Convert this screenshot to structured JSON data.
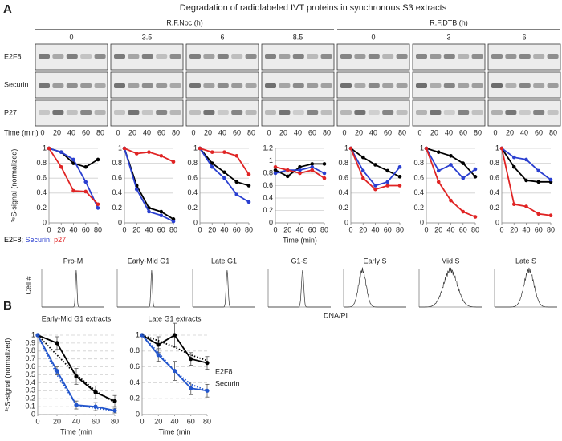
{
  "panel_a": {
    "label": "A",
    "title": "Degradation of radiolabeled IVT proteins in synchronous S3 extracts",
    "groups": [
      {
        "name": "R.F.Noc (h)",
        "timepoints": [
          "0",
          "3.5",
          "6",
          "8.5"
        ]
      },
      {
        "name": "R.F.DTB (h)",
        "timepoints": [
          "0",
          "3",
          "6"
        ]
      }
    ],
    "blot_rows": [
      "E2F8",
      "Securin",
      "P27"
    ],
    "time_title": "Time (min)",
    "time_labels": [
      "0",
      "20",
      "40",
      "60",
      "80"
    ],
    "legend_separator": ";",
    "flow": {
      "labels": [
        "Pro-M",
        "Early-Mid G1",
        "Late G1",
        "G1-S",
        "Early S",
        "Mid S",
        "Late S"
      ],
      "ylabel": "Cell #",
      "xlabel": "DNA/PI"
    }
  },
  "panel_b": {
    "label": "B"
  },
  "chart_data": [
    {
      "type": "line",
      "ylabel": "³⁵S-signal (normalized)",
      "x": [
        0,
        20,
        40,
        60,
        80
      ],
      "xlim": [
        0,
        80
      ],
      "xticks": [
        0,
        20,
        40,
        60,
        80
      ],
      "ylim": [
        0,
        1
      ],
      "yticks": [
        0,
        0.2,
        0.4,
        0.6,
        0.8,
        1
      ],
      "grid": true,
      "series": [
        {
          "name": "E2F8",
          "color": "#000000",
          "values": [
            1,
            0.95,
            0.8,
            0.75,
            0.85
          ]
        },
        {
          "name": "Securin",
          "color": "#2a3fd0",
          "values": [
            1,
            0.95,
            0.85,
            0.55,
            0.2
          ]
        },
        {
          "name": "p27",
          "color": "#e02424",
          "values": [
            1,
            0.75,
            0.43,
            0.42,
            0.25
          ]
        }
      ]
    },
    {
      "type": "line",
      "x": [
        0,
        20,
        40,
        60,
        80
      ],
      "xlim": [
        0,
        80
      ],
      "xticks": [
        0,
        20,
        40,
        60,
        80
      ],
      "ylim": [
        0,
        1
      ],
      "yticks": [
        0,
        0.2,
        0.4,
        0.6,
        0.8,
        1
      ],
      "grid": true,
      "series": [
        {
          "color": "#000000",
          "values": [
            1,
            0.5,
            0.2,
            0.15,
            0.05
          ]
        },
        {
          "color": "#2a3fd0",
          "values": [
            1,
            0.45,
            0.15,
            0.1,
            0.02
          ]
        },
        {
          "color": "#e02424",
          "values": [
            1,
            0.93,
            0.95,
            0.9,
            0.82
          ]
        }
      ]
    },
    {
      "type": "line",
      "x": [
        0,
        20,
        40,
        60,
        80
      ],
      "xlim": [
        0,
        80
      ],
      "xticks": [
        0,
        20,
        40,
        60,
        80
      ],
      "ylim": [
        0,
        1
      ],
      "yticks": [
        0,
        0.2,
        0.4,
        0.6,
        0.8,
        1
      ],
      "grid": true,
      "series": [
        {
          "color": "#000000",
          "values": [
            1,
            0.8,
            0.68,
            0.55,
            0.5
          ]
        },
        {
          "color": "#2a3fd0",
          "values": [
            1,
            0.75,
            0.6,
            0.38,
            0.28
          ]
        },
        {
          "color": "#e02424",
          "values": [
            1,
            0.95,
            0.95,
            0.9,
            0.65
          ]
        }
      ]
    },
    {
      "type": "line",
      "xlabel": "Time (min)",
      "x": [
        0,
        20,
        40,
        60,
        80
      ],
      "xlim": [
        0,
        80
      ],
      "xticks": [
        0,
        20,
        40,
        60,
        80
      ],
      "ylim": [
        0,
        1.2
      ],
      "yticks": [
        0,
        0.2,
        0.4,
        0.6,
        0.8,
        1,
        1.2
      ],
      "grid": true,
      "series": [
        {
          "color": "#000000",
          "values": [
            0.85,
            0.75,
            0.9,
            0.95,
            0.95
          ]
        },
        {
          "color": "#2a3fd0",
          "values": [
            0.8,
            0.85,
            0.85,
            0.9,
            0.8
          ]
        },
        {
          "color": "#e02424",
          "values": [
            0.9,
            0.85,
            0.8,
            0.85,
            0.72
          ]
        }
      ]
    },
    {
      "type": "line",
      "x": [
        0,
        20,
        40,
        60,
        80
      ],
      "xlim": [
        0,
        80
      ],
      "xticks": [
        0,
        20,
        40,
        60,
        80
      ],
      "ylim": [
        0,
        1
      ],
      "yticks": [
        0,
        0.2,
        0.4,
        0.6,
        0.8,
        1
      ],
      "grid": true,
      "series": [
        {
          "color": "#000000",
          "values": [
            1,
            0.88,
            0.78,
            0.7,
            0.62
          ]
        },
        {
          "color": "#2a3fd0",
          "values": [
            1,
            0.7,
            0.5,
            0.55,
            0.75
          ]
        },
        {
          "color": "#e02424",
          "values": [
            1,
            0.6,
            0.45,
            0.5,
            0.5
          ]
        }
      ]
    },
    {
      "type": "line",
      "x": [
        0,
        20,
        40,
        60,
        80
      ],
      "xlim": [
        0,
        80
      ],
      "xticks": [
        0,
        20,
        40,
        60,
        80
      ],
      "ylim": [
        0,
        1
      ],
      "yticks": [
        0,
        0.2,
        0.4,
        0.6,
        0.8,
        1
      ],
      "grid": true,
      "series": [
        {
          "color": "#000000",
          "values": [
            1,
            0.95,
            0.9,
            0.8,
            0.62
          ]
        },
        {
          "color": "#2a3fd0",
          "values": [
            1,
            0.7,
            0.78,
            0.6,
            0.72
          ]
        },
        {
          "color": "#e02424",
          "values": [
            1,
            0.55,
            0.3,
            0.15,
            0.08
          ]
        }
      ]
    },
    {
      "type": "line",
      "x": [
        0,
        20,
        40,
        60,
        80
      ],
      "xlim": [
        0,
        80
      ],
      "xticks": [
        0,
        20,
        40,
        60,
        80
      ],
      "ylim": [
        0,
        1
      ],
      "yticks": [
        0,
        0.2,
        0.4,
        0.6,
        0.8,
        1
      ],
      "grid": true,
      "series": [
        {
          "color": "#000000",
          "values": [
            1,
            0.75,
            0.57,
            0.55,
            0.55
          ]
        },
        {
          "color": "#2a3fd0",
          "values": [
            1,
            0.88,
            0.85,
            0.7,
            0.58
          ]
        },
        {
          "color": "#e02424",
          "values": [
            1,
            0.25,
            0.22,
            0.12,
            0.1
          ]
        }
      ]
    },
    {
      "type": "line",
      "title": "Early-Mid G1 extracts",
      "ylabel": "³⁵S-signal (normalized)",
      "xlabel": "Time (min",
      "x": [
        0,
        20,
        40,
        60,
        80
      ],
      "xlim": [
        0,
        80
      ],
      "xticks": [
        0,
        20,
        40,
        60,
        80
      ],
      "ylim": [
        0,
        1
      ],
      "yticks": [
        0,
        0.1,
        0.2,
        0.3,
        0.4,
        0.5,
        0.6,
        0.7,
        0.8,
        0.9,
        1
      ],
      "grid": true,
      "grid_dash": true,
      "series": [
        {
          "color": "#000000",
          "values": [
            1,
            0.9,
            0.48,
            0.28,
            0.17
          ],
          "errors": [
            0,
            0.08,
            0.1,
            0.08,
            0.07
          ]
        },
        {
          "color": "#2255cc",
          "values": [
            1,
            0.55,
            0.12,
            0.1,
            0.05
          ],
          "errors": [
            0,
            0.05,
            0.05,
            0.05,
            0.03
          ]
        },
        {
          "color": "#000000",
          "values": [
            1,
            0.75,
            0.5,
            0.3,
            0.15
          ],
          "dash": true
        },
        {
          "color": "#2255cc",
          "values": [
            1,
            0.5,
            0.12,
            0.08,
            0.05
          ],
          "dash": true
        }
      ]
    },
    {
      "type": "line",
      "title": "Late G1 extracts",
      "xlabel": "Time (min",
      "x": [
        0,
        20,
        40,
        60,
        80
      ],
      "xlim": [
        0,
        80
      ],
      "xticks": [
        0,
        20,
        40,
        60,
        80
      ],
      "ylim": [
        0,
        1
      ],
      "yticks": [
        0,
        0.2,
        0.4,
        0.6,
        0.8,
        1
      ],
      "grid": true,
      "grid_dash": true,
      "series": [
        {
          "name": "E2F8",
          "color": "#000000",
          "values": [
            1,
            0.88,
            1,
            0.7,
            0.65
          ],
          "errors": [
            0,
            0.1,
            0.15,
            0.08,
            0.08
          ]
        },
        {
          "name": "Securin",
          "color": "#2255cc",
          "values": [
            1,
            0.75,
            0.55,
            0.33,
            0.3
          ],
          "errors": [
            0,
            0.08,
            0.12,
            0.08,
            0.08
          ]
        },
        {
          "color": "#000000",
          "values": [
            1,
            0.93,
            0.85,
            0.75,
            0.68
          ],
          "dash": true
        },
        {
          "color": "#2255cc",
          "values": [
            1,
            0.78,
            0.55,
            0.38,
            0.3
          ],
          "dash": true
        }
      ]
    }
  ]
}
